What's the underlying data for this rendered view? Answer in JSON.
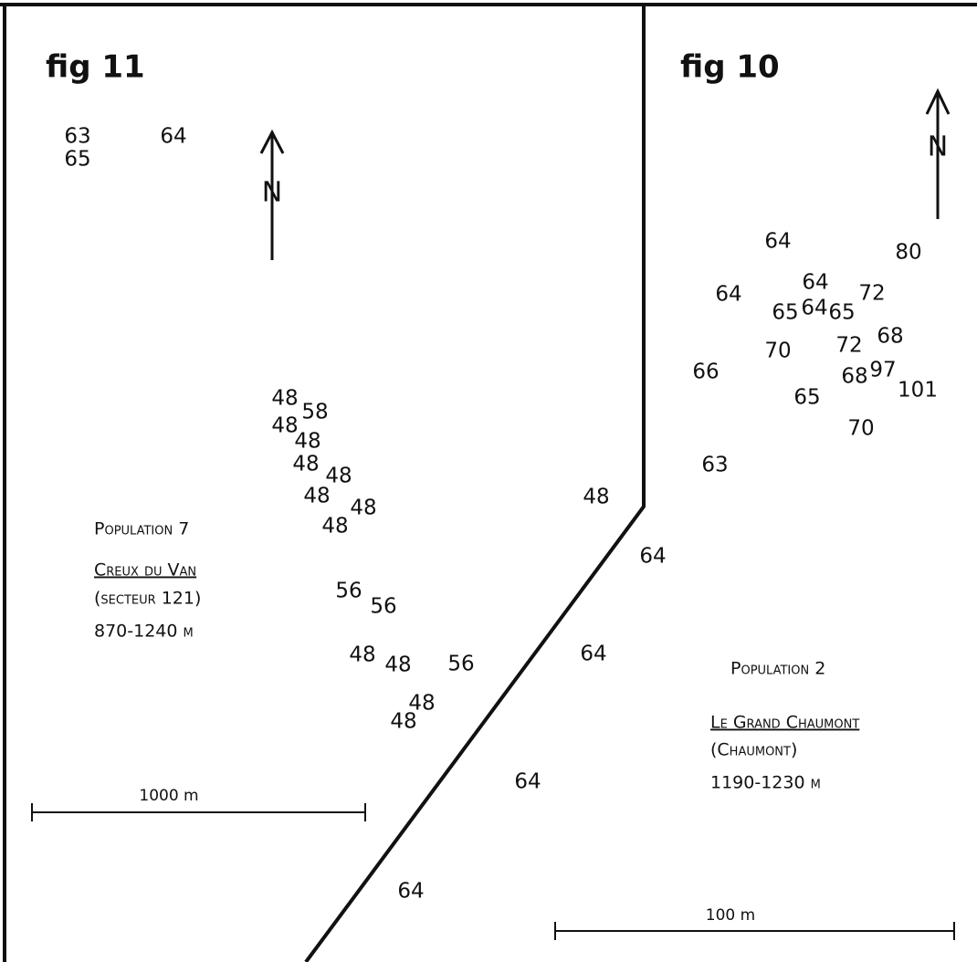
{
  "panels": [
    {
      "title": "fig 11",
      "north": "N",
      "points": [
        "63",
        "65",
        "64",
        "48",
        "58",
        "48",
        "48",
        "48",
        "48",
        "48",
        "48",
        "48",
        "56",
        "56",
        "48",
        "48",
        "56",
        "48",
        "48",
        "48"
      ],
      "population": "Population 7",
      "site": "Creux du Van",
      "sector": "(secteur 121)",
      "altitude": "870-1240 m",
      "scale": "1000 m"
    },
    {
      "title": "fig 10",
      "north": "N",
      "points": [
        "64",
        "80",
        "64",
        "64",
        "72",
        "65",
        "64",
        "65",
        "70",
        "72",
        "68",
        "66",
        "68",
        "97",
        "101",
        "65",
        "70",
        "63",
        "64",
        "64",
        "64",
        "64"
      ],
      "population": "Population 2",
      "site": "Le Grand Chaumont",
      "sector": "(Chaumont)",
      "altitude": "1190-1230 m",
      "scale": "100 m"
    }
  ]
}
